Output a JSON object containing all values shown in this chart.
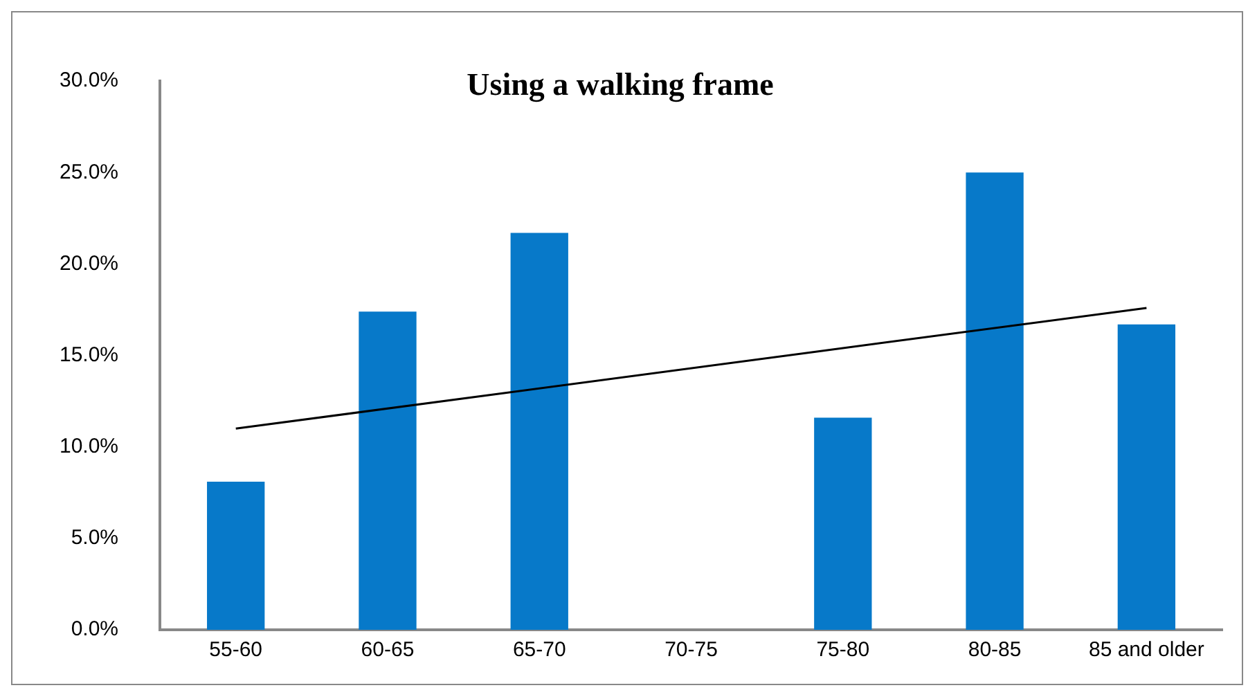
{
  "chart_data": {
    "type": "bar",
    "title": "Using a walking frame",
    "categories": [
      "55-60",
      "60-65",
      "65-70",
      "70-75",
      "75-80",
      "80-85",
      "85 and older"
    ],
    "series": [
      {
        "color": "#0779c9",
        "values": [
          8.1,
          17.4,
          21.7,
          0,
          11.6,
          25.0,
          16.7
        ]
      },
      {
        "type": "line",
        "color": "#000000",
        "x": [
          "55-60",
          "85 and older"
        ],
        "values": [
          11.0,
          17.6
        ]
      }
    ],
    "ylim": [
      0,
      30
    ],
    "yticks": [
      {
        "value": 0,
        "label": "0.0%"
      },
      {
        "value": 5,
        "label": "5.0%"
      },
      {
        "value": 10,
        "label": "10.0%"
      },
      {
        "value": 15,
        "label": "15.0%"
      },
      {
        "value": 20,
        "label": "20.0%"
      },
      {
        "value": 25,
        "label": "25.0%"
      },
      {
        "value": 30,
        "label": "30.0%"
      }
    ],
    "grid": false,
    "legend": false,
    "marker": "none"
  }
}
